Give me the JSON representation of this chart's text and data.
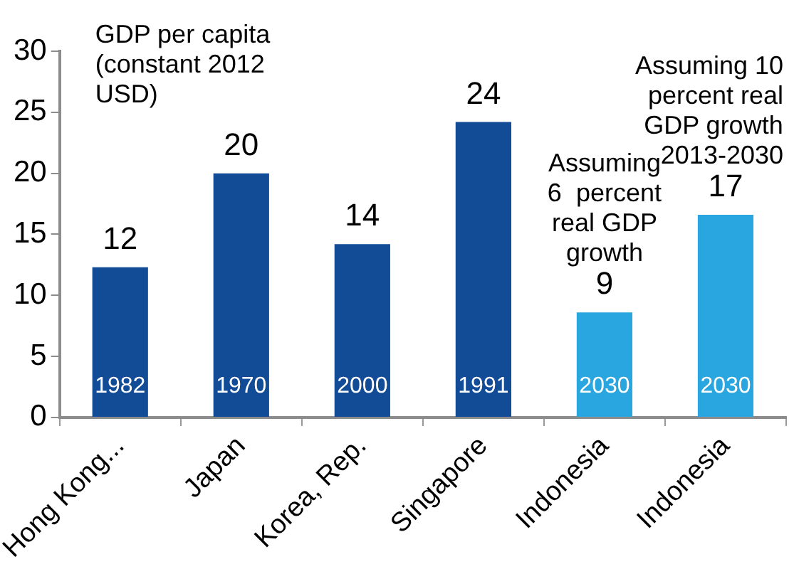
{
  "chart_data": {
    "type": "bar",
    "categories": [
      "Hong Kong...",
      "Japan",
      "Korea, Rep.",
      "Singapore",
      "Indonesia",
      "Indonesia"
    ],
    "values": [
      12.3,
      20,
      14.2,
      24.2,
      8.6,
      16.6
    ],
    "colors": [
      "#124c97",
      "#124c97",
      "#124c97",
      "#124c97",
      "#29a6df",
      "#29a6df"
    ],
    "value_labels": [
      "12",
      "20",
      "14",
      "24",
      "9",
      "17"
    ],
    "ylim": [
      0,
      30
    ],
    "yticks": [
      0,
      5,
      10,
      15,
      20,
      25,
      30
    ],
    "grid": false,
    "legend": false,
    "annotations": [
      "GDP per capita\n(constant 2012\nUSD)",
      "1982",
      "1970",
      "2000",
      "1991",
      "2030",
      "2030",
      "Assuming\n6  percent\nreal GDP\ngrowth",
      "Assuming 10\npercent real\nGDP growth\n2013-2030"
    ]
  }
}
